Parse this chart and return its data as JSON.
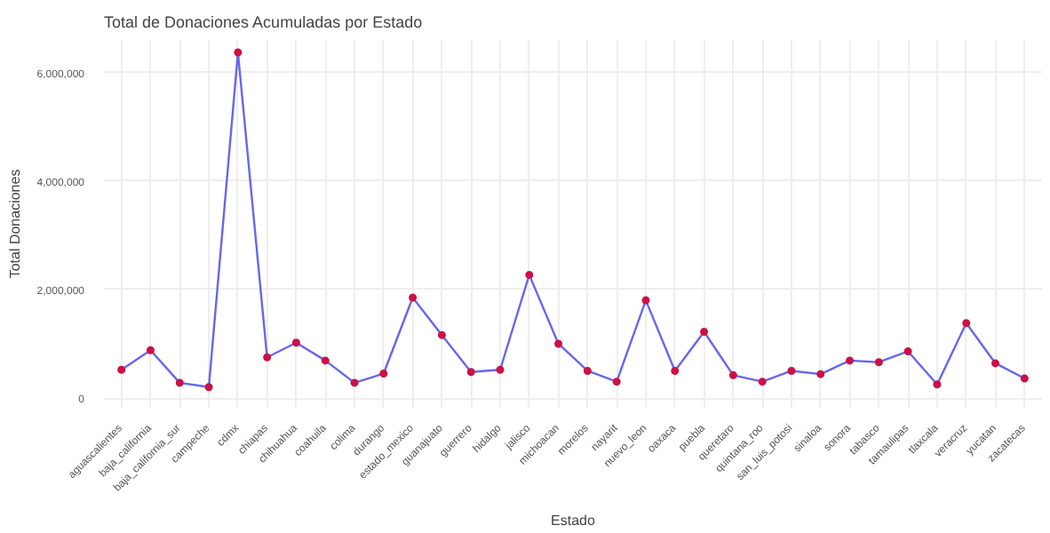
{
  "chart_data": {
    "type": "line",
    "title": "Total de Donaciones Acumuladas por Estado",
    "xlabel": "Estado",
    "ylabel": "Total Donaciones",
    "categories": [
      "aguascalientes",
      "baja_california",
      "baja_california_sur",
      "campeche",
      "cdmx",
      "chiapas",
      "chihuahua",
      "coahuila",
      "colima",
      "durango",
      "estado_mexico",
      "guanajuato",
      "guerrero",
      "hidalgo",
      "jalisco",
      "michoacan",
      "morelos",
      "nayarit",
      "nuevo_leon",
      "oaxaca",
      "puebla",
      "queretaro",
      "quintana_roo",
      "san_luis_potosi",
      "sinaloa",
      "sonora",
      "tabasco",
      "tamaulipas",
      "tlaxcala",
      "veracruz",
      "yucatan",
      "zacatecas"
    ],
    "series": [
      {
        "color": "#6666ee",
        "colors": [
          "#cc1144",
          "#cc1144",
          "#cc1144",
          "#cc1144",
          "#cc1144",
          "#cc1144",
          "#cc1144",
          "#cc1144",
          "#cc1144",
          "#cc1144",
          "#cc1144",
          "#cc1144",
          "#cc1144",
          "#cc1144",
          "#cc1144",
          "#cc1144",
          "#cc1144",
          "#cc1144",
          "#cc1144",
          "#cc1144",
          "#cc1144",
          "#cc1144",
          "#cc1144",
          "#cc1144",
          "#cc1144",
          "#cc1144",
          "#cc1144",
          "#cc1144",
          "#cc1144",
          "#cc1144",
          "#cc1144",
          "#cc1144"
        ],
        "values": [
          520000,
          880000,
          280000,
          200000,
          6370000,
          750000,
          1020000,
          690000,
          280000,
          450000,
          1850000,
          1160000,
          480000,
          520000,
          2270000,
          1000000,
          500000,
          300000,
          1800000,
          500000,
          1220000,
          420000,
          300000,
          500000,
          440000,
          690000,
          660000,
          860000,
          250000,
          1380000,
          640000,
          360000
        ]
      }
    ],
    "ylim": [
      -180000,
      6600000
    ],
    "yticks": [
      {
        "value": 0,
        "label": "0"
      },
      {
        "value": 2000000,
        "label": "2,000,000"
      },
      {
        "value": 4000000,
        "label": "4,000,000"
      },
      {
        "value": 6000000,
        "label": "6,000,000"
      }
    ],
    "grid": true,
    "marker": "circle",
    "line_style": "solid"
  }
}
